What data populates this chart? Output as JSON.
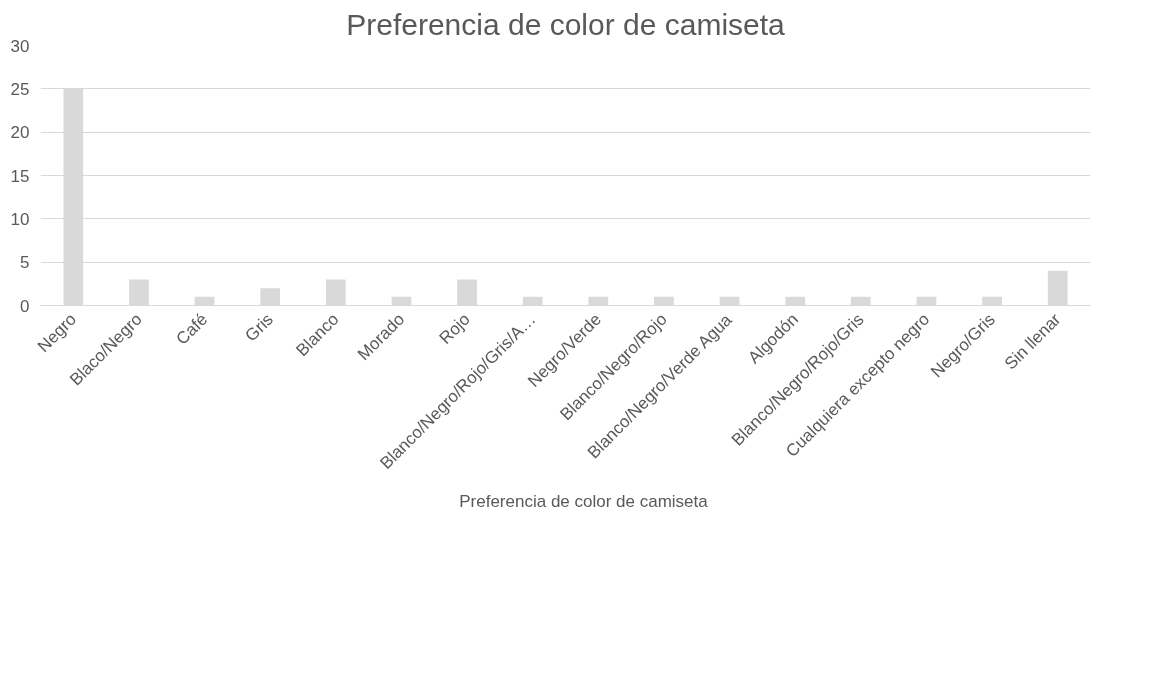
{
  "chart_data": {
    "type": "bar",
    "title": "Preferencia de color de camiseta",
    "categories": [
      "Negro",
      "Blaco/Negro",
      "Café",
      "Gris",
      "Blanco",
      "Morado",
      "Rojo",
      "Blanco/Negro/Rojo/Gris/A…",
      "Negro/Verde",
      "Blanco/Negro/Rojo",
      "Blanco/Negro/Verde Agua",
      "Algodón",
      "Blanco/Negro/Rojo/Gris",
      "Cualquiera excepto negro",
      "Negro/Gris",
      "Sin llenar"
    ],
    "series": [
      {
        "name": "Preferencia de color de camiseta",
        "color": "#d9d9d9",
        "values": [
          25,
          3,
          1,
          2,
          3,
          1,
          3,
          1,
          1,
          1,
          1,
          1,
          1,
          1,
          1,
          4
        ]
      }
    ],
    "ylim": [
      0,
      30
    ],
    "yticks": [
      0,
      5,
      10,
      15,
      20,
      25,
      30
    ],
    "grid": "y",
    "legend": "bottom"
  }
}
